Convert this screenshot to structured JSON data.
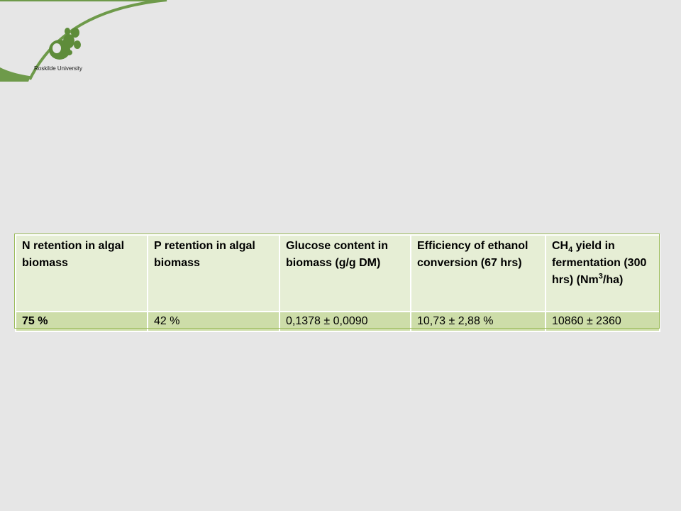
{
  "logo": {
    "text": "Roskilde University"
  },
  "table": {
    "headers": [
      {
        "pre": "N retention in algal biomass",
        "sub": "",
        "mid": "",
        "sup": "",
        "post": ""
      },
      {
        "pre": "P retention in algal biomass",
        "sub": "",
        "mid": "",
        "sup": "",
        "post": ""
      },
      {
        "pre": "Glucose content in biomass (g/g DM)",
        "sub": "",
        "mid": "",
        "sup": "",
        "post": ""
      },
      {
        "pre": "Efficiency of ethanol conversion (67 hrs)",
        "sub": "",
        "mid": "",
        "sup": "",
        "post": ""
      },
      {
        "pre": "CH",
        "sub": "4",
        "mid": " yield in fermentation (300 hrs) (Nm",
        "sup": "3",
        "post": "/ha)"
      }
    ],
    "row": [
      "75 %",
      "42 %",
      "0,1378 ± 0,0090",
      "10,73 ± 2,88 %",
      "10860 ± 2360"
    ]
  },
  "colors": {
    "background": "#e6e6e6",
    "swoosh": "#6e9a4a",
    "header_fill": "#e6eed5",
    "row_fill": "#cddda9",
    "table_border": "#9bbb59"
  }
}
